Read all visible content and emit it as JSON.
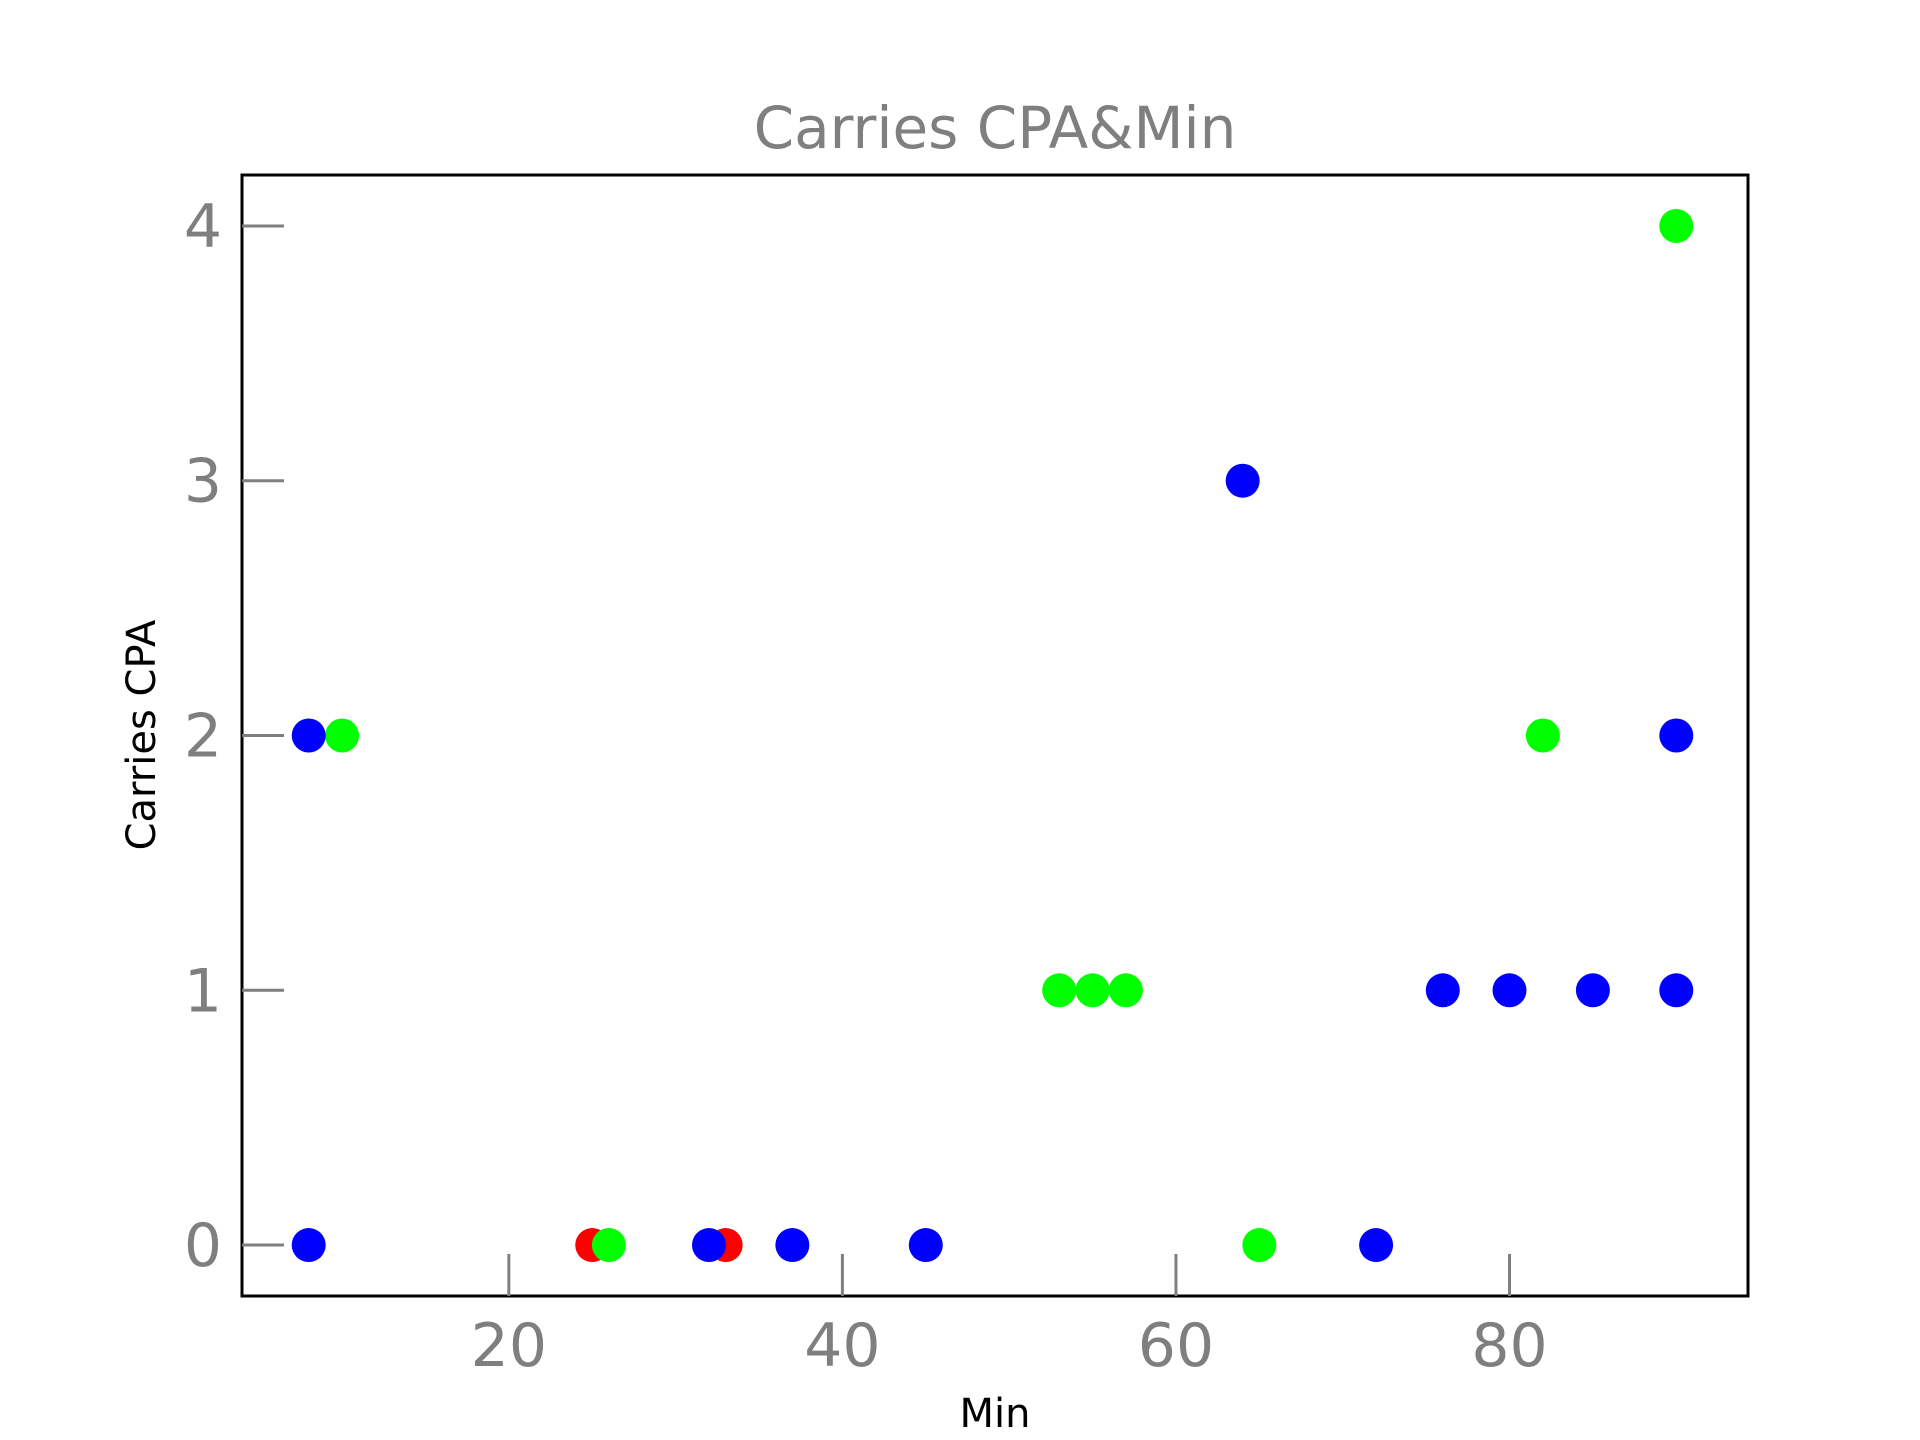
{
  "chart_data": {
    "type": "scatter",
    "title": "Carries CPA&Min",
    "xlabel": "Min",
    "ylabel": "Carries CPA",
    "xlim": [
      4,
      94.3
    ],
    "ylim": [
      -0.2,
      4.2
    ],
    "xticks": [
      {
        "value": 20,
        "label": "20"
      },
      {
        "value": 40,
        "label": "40"
      },
      {
        "value": 60,
        "label": "60"
      },
      {
        "value": 80,
        "label": "80"
      }
    ],
    "yticks": [
      {
        "value": 0,
        "label": "0"
      },
      {
        "value": 1,
        "label": "1"
      },
      {
        "value": 2,
        "label": "2"
      },
      {
        "value": 3,
        "label": "3"
      },
      {
        "value": 4,
        "label": "4"
      }
    ],
    "grid": false,
    "series": [
      {
        "color": "#ff0000",
        "points": [
          {
            "x": 25,
            "y": 0
          },
          {
            "x": 33,
            "y": 0
          }
        ]
      },
      {
        "color": "#00ff00",
        "points": [
          {
            "x": 10,
            "y": 2
          },
          {
            "x": 26,
            "y": 0
          },
          {
            "x": 53,
            "y": 1
          },
          {
            "x": 55,
            "y": 1
          },
          {
            "x": 57,
            "y": 1
          },
          {
            "x": 65,
            "y": 0
          },
          {
            "x": 82,
            "y": 2
          },
          {
            "x": 90,
            "y": 4
          }
        ]
      },
      {
        "color": "#0000ff",
        "points": [
          {
            "x": 8,
            "y": 2
          },
          {
            "x": 8,
            "y": 0
          },
          {
            "x": 32,
            "y": 0
          },
          {
            "x": 37,
            "y": 0
          },
          {
            "x": 45,
            "y": 0
          },
          {
            "x": 64,
            "y": 3
          },
          {
            "x": 72,
            "y": 0
          },
          {
            "x": 76,
            "y": 1
          },
          {
            "x": 80,
            "y": 1
          },
          {
            "x": 85,
            "y": 1
          },
          {
            "x": 90,
            "y": 2
          },
          {
            "x": 90,
            "y": 1
          }
        ]
      }
    ]
  }
}
